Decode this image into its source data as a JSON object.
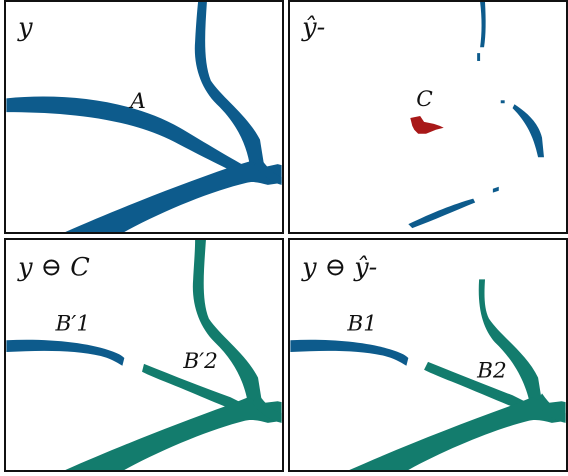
{
  "panels": [
    {
      "title": "y",
      "labels": [
        "A"
      ]
    },
    {
      "title": "ŷ-",
      "labels": [
        "C"
      ]
    },
    {
      "title": "y ⊖ C",
      "labels": [
        "B′1",
        "B′2"
      ]
    },
    {
      "title": "y ⊖ ŷ-",
      "labels": [
        "B1",
        "B2"
      ]
    }
  ],
  "colors": {
    "vessel_blue": "#0d5b8c",
    "vessel_teal": "#137c6d",
    "false_positive_red": "#a81818",
    "frame": "#111111",
    "background": "#ffffff"
  },
  "tex_labels": {
    "y": "y",
    "hat_y_minus": "ŷ-",
    "y_minus_C": "y ⊖ C",
    "y_minus_hat_y": "y ⊖ ŷ-",
    "A": "A",
    "C": "C",
    "B1p": "B′1",
    "B2p": "B′2",
    "B1": "B1",
    "B2": "B2"
  }
}
